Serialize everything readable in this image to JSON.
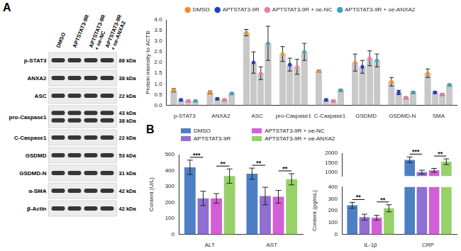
{
  "blot": {
    "panel": "A",
    "lanes": [
      "DMSO",
      "APTSTAT3-9R",
      "APTSTAT3-9R + oe-NC",
      "APTSTAT3-9R + oe-ANXA2"
    ],
    "rows": [
      {
        "label": "p-STAT3",
        "kda": [
          "88 kDa"
        ]
      },
      {
        "label": "ANXA2",
        "kda": [
          "38 kDa"
        ]
      },
      {
        "label": "ASC",
        "kda": [
          "22 kDa"
        ]
      },
      {
        "label": "pro-Caspase1",
        "kda": [
          "43 kDa",
          "38 kDa"
        ]
      },
      {
        "label": "C-Caspase1",
        "kda": [
          "22 kDa"
        ]
      },
      {
        "label": "GSDMD",
        "kda": [
          "53 kDa"
        ]
      },
      {
        "label": "GSDMD-N",
        "kda": [
          "31 kDa"
        ]
      },
      {
        "label": "α-SMA",
        "kda": [
          "42 kDa"
        ]
      },
      {
        "label": "β-Actin",
        "kda": [
          "42 kDa"
        ]
      }
    ]
  },
  "chart_data": [
    {
      "type": "bar",
      "y_label": "Protein intensity to ACTB",
      "categories": [
        "p-STAT3",
        "ANXA2",
        "ASC",
        "pro-Caspase1",
        "C-Caspase1",
        "GSDMD",
        "GSDMD-N",
        "SMA"
      ],
      "color": "#c8c8c8",
      "marker": "circle",
      "legend": "top",
      "grid": false,
      "ylim": [
        0,
        4
      ],
      "yticks": [
        {
          "value": 0,
          "label": "0.0"
        },
        {
          "value": 0.5,
          "label": "0.5"
        },
        {
          "value": 1,
          "label": "1.0"
        },
        {
          "value": 1.5,
          "label": "1.5"
        },
        {
          "value": 2,
          "label": "2.0"
        },
        {
          "value": 2.5,
          "label": "2.5"
        },
        {
          "value": 3,
          "label": "3.0"
        },
        {
          "value": 3.5,
          "label": "3.5"
        },
        {
          "value": 4,
          "label": "4.0"
        }
      ],
      "series": [
        {
          "name": "DMSO",
          "color": "#f28c28",
          "values": [
            0.7,
            0.6,
            3.4,
            2.4,
            1.6,
            2.0,
            1.1,
            1.5
          ],
          "errors": [
            0.08,
            0.07,
            0.15,
            0.35,
            0.05,
            0.4,
            0.2,
            0.2
          ]
        },
        {
          "name": "APTSTAT3-9R",
          "color": "#1f3fbf",
          "values": [
            0.25,
            0.3,
            2.0,
            1.9,
            0.25,
            1.8,
            0.6,
            0.6
          ],
          "errors": [
            0.05,
            0.05,
            0.5,
            0.3,
            0.05,
            0.3,
            0.1,
            0.05
          ]
        },
        {
          "name": "APTSTAT3-9R + oe-NC",
          "color": "#f07a9a",
          "values": [
            0.2,
            0.25,
            1.5,
            1.8,
            0.2,
            2.2,
            0.35,
            0.5
          ],
          "errors": [
            0.04,
            0.05,
            0.3,
            0.35,
            0.04,
            0.35,
            0.05,
            0.05
          ]
        },
        {
          "name": "APTSTAT3-9R + oe-ANXA2",
          "color": "#3aa6b9",
          "values": [
            0.2,
            0.55,
            2.9,
            2.5,
            0.7,
            2.1,
            0.6,
            0.95
          ],
          "errors": [
            0.04,
            0.05,
            0.8,
            0.4,
            0.05,
            0.3,
            0.05,
            0.05
          ]
        }
      ]
    },
    {
      "type": "bar",
      "panel": "B",
      "y_label": "Content (U/L)",
      "categories": [
        "ALT",
        "AST"
      ],
      "legend": "top",
      "grid": false,
      "ylim": [
        0,
        500
      ],
      "yticks": [
        0,
        100,
        200,
        300,
        400,
        500
      ],
      "series": [
        {
          "name": "DMSO",
          "color": "#4d7fc4",
          "values": [
            420,
            380
          ],
          "errors": [
            45,
            35
          ]
        },
        {
          "name": "APTSTAT3-9R",
          "color": "#8f6fd0",
          "values": [
            225,
            240
          ],
          "errors": [
            45,
            55
          ]
        },
        {
          "name": "APTSTAT3-9R + oe-NC",
          "color": "#d35fd6",
          "values": [
            225,
            235
          ],
          "errors": [
            30,
            40
          ]
        },
        {
          "name": "APTSTAT3-9R + oe-ANXA2",
          "color": "#97d16a",
          "values": [
            365,
            345
          ],
          "errors": [
            45,
            35
          ]
        }
      ],
      "significance": [
        {
          "category": "ALT",
          "between": [
            "DMSO",
            "APTSTAT3-9R"
          ],
          "label": "***"
        },
        {
          "category": "ALT",
          "between": [
            "APTSTAT3-9R + oe-NC",
            "APTSTAT3-9R + oe-ANXA2"
          ],
          "label": "**"
        },
        {
          "category": "AST",
          "between": [
            "DMSO",
            "APTSTAT3-9R"
          ],
          "label": "**"
        },
        {
          "category": "AST",
          "between": [
            "APTSTAT3-9R + oe-NC",
            "APTSTAT3-9R + oe-ANXA2"
          ],
          "label": "**"
        }
      ]
    },
    {
      "type": "bar",
      "y_label": "Content (pg/mL)",
      "categories": [
        "IL-1β",
        "CRP"
      ],
      "grid": false,
      "ylim": [
        0,
        2000
      ],
      "axis_break": [
        400,
        800
      ],
      "yticks": [
        0,
        100,
        200,
        300,
        400,
        1000,
        1500,
        2000
      ],
      "series": [
        {
          "name": "DMSO",
          "color": "#4d7fc4",
          "values": [
            245,
            1650
          ],
          "errors": [
            25,
            150
          ]
        },
        {
          "name": "APTSTAT3-9R",
          "color": "#8f6fd0",
          "values": [
            145,
            1000
          ],
          "errors": [
            25,
            100
          ]
        },
        {
          "name": "APTSTAT3-9R + oe-NC",
          "color": "#d35fd6",
          "values": [
            140,
            1100
          ],
          "errors": [
            20,
            100
          ]
        },
        {
          "name": "APTSTAT3-9R + oe-ANXA2",
          "color": "#97d16a",
          "values": [
            220,
            1550
          ],
          "errors": [
            30,
            150
          ]
        }
      ],
      "significance": [
        {
          "category": "IL-1β",
          "between": [
            "DMSO",
            "APTSTAT3-9R"
          ],
          "label": "**"
        },
        {
          "category": "IL-1β",
          "between": [
            "APTSTAT3-9R + oe-NC",
            "APTSTAT3-9R + oe-ANXA2"
          ],
          "label": "**"
        },
        {
          "category": "CRP",
          "between": [
            "DMSO",
            "APTSTAT3-9R"
          ],
          "label": "***"
        },
        {
          "category": "CRP",
          "between": [
            "APTSTAT3-9R + oe-NC",
            "APTSTAT3-9R + oe-ANXA2"
          ],
          "label": "**"
        }
      ]
    }
  ]
}
